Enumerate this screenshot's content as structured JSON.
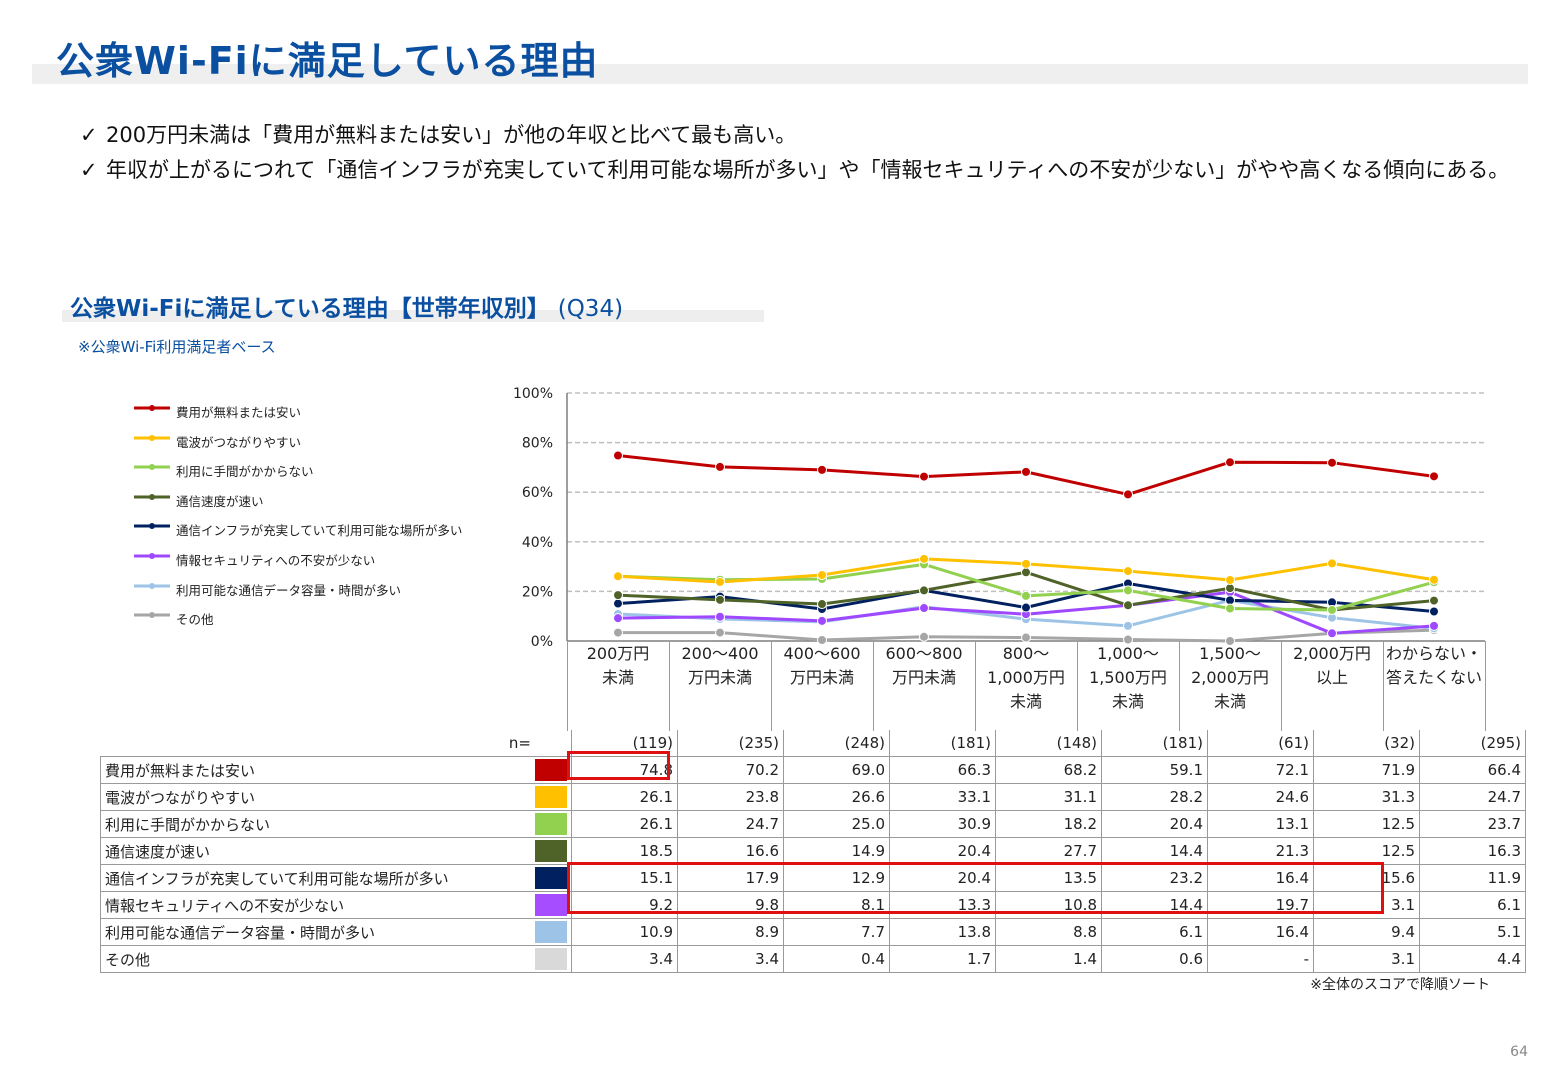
{
  "title": "公衆Wi-Fiに満足している理由",
  "bullets": [
    "200万円未満は「費用が無料または安い」が他の年収と比べて最も高い。",
    "年収が上がるにつれて「通信インフラが充実していて利用可能な場所が多い」や「情報セキュリティへの不安が少ない」がやや高くなる傾向にある。"
  ],
  "check_mark": "✓",
  "subtitle": "公衆Wi-Fiに満足している理由【世帯年収別】",
  "subtitle_q": "(Q34)",
  "base_note": "※公衆Wi-Fi利用満足者ベース",
  "n_label": "n=",
  "sort_note": "※全体のスコアで降順ソート",
  "page_number": "64",
  "columns": [
    {
      "lines": [
        "200万円",
        "未満"
      ],
      "n": "(119)"
    },
    {
      "lines": [
        "200～400",
        "万円未満"
      ],
      "n": "(235)"
    },
    {
      "lines": [
        "400～600",
        "万円未満"
      ],
      "n": "(248)"
    },
    {
      "lines": [
        "600～800",
        "万円未満"
      ],
      "n": "(181)"
    },
    {
      "lines": [
        "800～",
        "1,000万円",
        "未満"
      ],
      "n": "(148)"
    },
    {
      "lines": [
        "1,000～",
        "1,500万円",
        "未満"
      ],
      "n": "(181)"
    },
    {
      "lines": [
        "1,500～",
        "2,000万円",
        "未満"
      ],
      "n": "(61)"
    },
    {
      "lines": [
        "2,000万円",
        "以上"
      ],
      "n": "(32)"
    },
    {
      "lines": [
        "わからない・",
        "答えたくない"
      ],
      "n": "(295)"
    }
  ],
  "chart_data": {
    "type": "line",
    "ylim": [
      0,
      100
    ],
    "yticks": [
      "0%",
      "20%",
      "40%",
      "60%",
      "80%",
      "100%"
    ],
    "grid": true,
    "categories": [
      "200万円未満",
      "200～400万円未満",
      "400～600万円未満",
      "600～800万円未満",
      "800～1,000万円未満",
      "1,000～1,500万円未満",
      "1,500～2,000万円未満",
      "2,000万円以上",
      "わからない・答えたくない"
    ],
    "series": [
      {
        "name": "費用が無料または安い",
        "color": "#c00000",
        "values": [
          74.8,
          70.2,
          69.0,
          66.3,
          68.2,
          59.1,
          72.1,
          71.9,
          66.4
        ],
        "display": [
          "74.8",
          "70.2",
          "69.0",
          "66.3",
          "68.2",
          "59.1",
          "72.1",
          "71.9",
          "66.4"
        ]
      },
      {
        "name": "電波がつながりやすい",
        "color": "#ffc000",
        "values": [
          26.1,
          23.8,
          26.6,
          33.1,
          31.1,
          28.2,
          24.6,
          31.3,
          24.7
        ],
        "display": [
          "26.1",
          "23.8",
          "26.6",
          "33.1",
          "31.1",
          "28.2",
          "24.6",
          "31.3",
          "24.7"
        ]
      },
      {
        "name": "利用に手間がかからない",
        "color": "#92d050",
        "values": [
          26.1,
          24.7,
          25.0,
          30.9,
          18.2,
          20.4,
          13.1,
          12.5,
          23.7
        ],
        "display": [
          "26.1",
          "24.7",
          "25.0",
          "30.9",
          "18.2",
          "20.4",
          "13.1",
          "12.5",
          "23.7"
        ]
      },
      {
        "name": "通信速度が速い",
        "color": "#4f6228",
        "values": [
          18.5,
          16.6,
          14.9,
          20.4,
          27.7,
          14.4,
          21.3,
          12.5,
          16.3
        ],
        "display": [
          "18.5",
          "16.6",
          "14.9",
          "20.4",
          "27.7",
          "14.4",
          "21.3",
          "12.5",
          "16.3"
        ]
      },
      {
        "name": "通信インフラが充実していて利用可能な場所が多い",
        "color": "#002060",
        "values": [
          15.1,
          17.9,
          12.9,
          20.4,
          13.5,
          23.2,
          16.4,
          15.6,
          11.9
        ],
        "display": [
          "15.1",
          "17.9",
          "12.9",
          "20.4",
          "13.5",
          "23.2",
          "16.4",
          "15.6",
          "11.9"
        ]
      },
      {
        "name": "情報セキュリティへの不安が少ない",
        "color": "#9e48ff",
        "values": [
          9.2,
          9.8,
          8.1,
          13.3,
          10.8,
          14.4,
          19.7,
          3.1,
          6.1
        ],
        "display": [
          "9.2",
          "9.8",
          "8.1",
          "13.3",
          "10.8",
          "14.4",
          "19.7",
          "3.1",
          "6.1"
        ]
      },
      {
        "name": "利用可能な通信データ容量・時間が多い",
        "color": "#9dc3e6",
        "values": [
          10.9,
          8.9,
          7.7,
          13.8,
          8.8,
          6.1,
          16.4,
          9.4,
          5.1
        ],
        "display": [
          "10.9",
          "8.9",
          "7.7",
          "13.8",
          "8.8",
          "6.1",
          "16.4",
          "9.4",
          "5.1"
        ]
      },
      {
        "name": "その他",
        "color": "#a6a6a6",
        "values": [
          3.4,
          3.4,
          0.4,
          1.7,
          1.4,
          0.6,
          0,
          3.1,
          4.4
        ],
        "display": [
          "3.4",
          "3.4",
          "0.4",
          "1.7",
          "1.4",
          "0.6",
          "-",
          "3.1",
          "4.4"
        ]
      }
    ]
  },
  "table_swatch_colors": [
    "#c00000",
    "#ffc000",
    "#92d050",
    "#4f6228",
    "#002060",
    "#a64dff",
    "#9dc3e6",
    "#d9d9d9"
  ]
}
